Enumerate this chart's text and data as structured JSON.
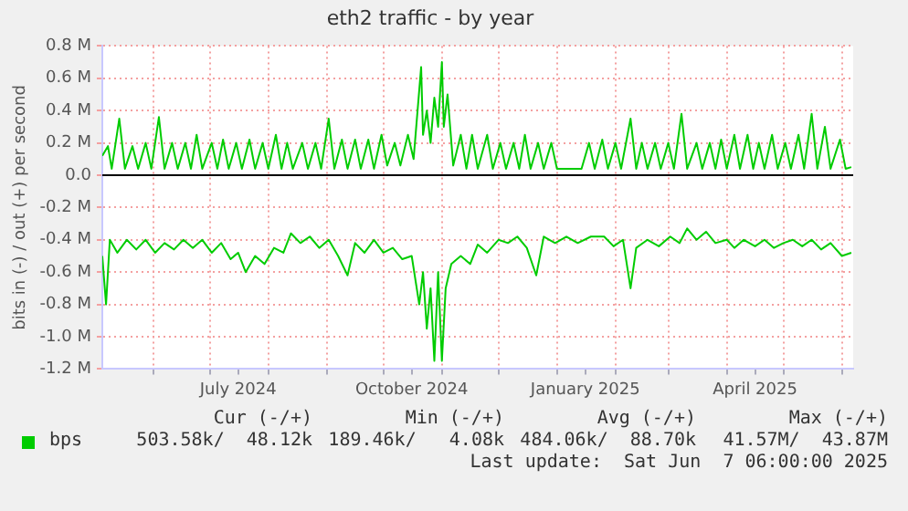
{
  "chart_data": {
    "type": "line",
    "title": "eth2 traffic - by year",
    "ylabel": "bits in (-) / out (+) per second",
    "xlim": [
      "2024-05-05",
      "2025-06-07"
    ],
    "xticks": [
      {
        "value": "2024-06-01",
        "label": null
      },
      {
        "value": "2024-07-01",
        "label": null
      },
      {
        "value": "2024-07-16",
        "label": "July 2024"
      },
      {
        "value": "2024-08-01",
        "label": null
      },
      {
        "value": "2024-09-01",
        "label": null
      },
      {
        "value": "2024-10-01",
        "label": null
      },
      {
        "value": "2024-10-16",
        "label": "October 2024"
      },
      {
        "value": "2024-11-01",
        "label": null
      },
      {
        "value": "2024-12-01",
        "label": null
      },
      {
        "value": "2025-01-01",
        "label": null
      },
      {
        "value": "2025-01-16",
        "label": "January 2025"
      },
      {
        "value": "2025-02-01",
        "label": null
      },
      {
        "value": "2025-03-01",
        "label": null
      },
      {
        "value": "2025-04-01",
        "label": null
      },
      {
        "value": "2025-04-16",
        "label": "April 2025"
      },
      {
        "value": "2025-05-01",
        "label": null
      },
      {
        "value": "2025-06-01",
        "label": null
      }
    ],
    "ylim": [
      -1200000,
      800000
    ],
    "yticks": [
      {
        "value": -1200000,
        "label": "-1.2 M"
      },
      {
        "value": -1000000,
        "label": "-1.0 M"
      },
      {
        "value": -800000,
        "label": "-0.8 M"
      },
      {
        "value": -600000,
        "label": "-0.6 M"
      },
      {
        "value": -400000,
        "label": "-0.4 M"
      },
      {
        "value": -200000,
        "label": "-0.2 M"
      },
      {
        "value": 0,
        "label": "0.0"
      },
      {
        "value": 200000,
        "label": "0.2 M"
      },
      {
        "value": 400000,
        "label": "0.4 M"
      },
      {
        "value": 600000,
        "label": "0.6 M"
      },
      {
        "value": 800000,
        "label": "0.8 M"
      }
    ],
    "grid": true,
    "legend": "bottom",
    "marker": "none",
    "line_style": "solid",
    "ref_lines": [
      {
        "axis": "y",
        "value": 0,
        "color": "#000000"
      }
    ],
    "series": [
      {
        "name": "bps",
        "color": "#00cc00",
        "x": [
          "2024-05-05",
          "2024-05-08",
          "2024-05-10",
          "2024-05-14",
          "2024-05-17",
          "2024-05-21",
          "2024-05-24",
          "2024-05-28",
          "2024-05-31",
          "2024-06-04",
          "2024-06-07",
          "2024-06-11",
          "2024-06-14",
          "2024-06-18",
          "2024-06-21",
          "2024-06-24",
          "2024-06-27",
          "2024-07-02",
          "2024-07-05",
          "2024-07-08",
          "2024-07-11",
          "2024-07-15",
          "2024-07-18",
          "2024-07-22",
          "2024-07-25",
          "2024-07-29",
          "2024-08-01",
          "2024-08-05",
          "2024-08-08",
          "2024-08-11",
          "2024-08-14",
          "2024-08-19",
          "2024-08-22",
          "2024-08-26",
          "2024-08-29",
          "2024-09-02",
          "2024-09-05",
          "2024-09-09",
          "2024-09-12",
          "2024-09-16",
          "2024-09-19",
          "2024-09-23",
          "2024-09-26",
          "2024-09-30",
          "2024-10-03",
          "2024-10-07",
          "2024-10-10",
          "2024-10-14",
          "2024-10-17",
          "2024-10-21",
          "2024-10-22",
          "2024-10-24",
          "2024-10-26",
          "2024-10-28",
          "2024-10-30",
          "2024-11-01",
          "2024-11-02",
          "2024-11-04",
          "2024-11-07",
          "2024-11-11",
          "2024-11-14",
          "2024-11-17",
          "2024-11-20",
          "2024-11-25",
          "2024-11-28",
          "2024-12-02",
          "2024-12-05",
          "2024-12-09",
          "2024-12-12",
          "2024-12-15",
          "2024-12-18",
          "2024-12-22",
          "2024-12-25",
          "2024-12-29",
          "2025-01-01",
          "2025-01-14",
          "2025-01-18",
          "2025-01-21",
          "2025-01-25",
          "2025-01-28",
          "2025-02-01",
          "2025-02-04",
          "2025-02-09",
          "2025-02-12",
          "2025-02-15",
          "2025-02-18",
          "2025-02-22",
          "2025-02-25",
          "2025-03-01",
          "2025-03-04",
          "2025-03-08",
          "2025-03-11",
          "2025-03-16",
          "2025-03-19",
          "2025-03-23",
          "2025-03-26",
          "2025-03-29",
          "2025-04-01",
          "2025-04-05",
          "2025-04-08",
          "2025-04-12",
          "2025-04-15",
          "2025-04-18",
          "2025-04-21",
          "2025-04-25",
          "2025-04-28",
          "2025-05-02",
          "2025-05-05",
          "2025-05-09",
          "2025-05-12",
          "2025-05-16",
          "2025-05-19",
          "2025-05-23",
          "2025-05-26",
          "2025-05-31",
          "2025-06-03",
          "2025-06-06"
        ],
        "values": [
          120000,
          180000,
          40000,
          350000,
          40000,
          180000,
          40000,
          200000,
          40000,
          360000,
          40000,
          200000,
          40000,
          200000,
          40000,
          250000,
          40000,
          200000,
          40000,
          220000,
          40000,
          200000,
          40000,
          220000,
          40000,
          200000,
          40000,
          250000,
          40000,
          200000,
          40000,
          200000,
          40000,
          200000,
          40000,
          350000,
          40000,
          220000,
          40000,
          220000,
          40000,
          220000,
          40000,
          250000,
          60000,
          200000,
          60000,
          250000,
          100000,
          670000,
          250000,
          400000,
          200000,
          480000,
          300000,
          700000,
          300000,
          500000,
          60000,
          250000,
          40000,
          250000,
          40000,
          250000,
          40000,
          200000,
          40000,
          200000,
          40000,
          250000,
          40000,
          200000,
          40000,
          200000,
          40000,
          40000,
          200000,
          40000,
          220000,
          40000,
          200000,
          40000,
          350000,
          40000,
          200000,
          40000,
          200000,
          40000,
          200000,
          40000,
          380000,
          40000,
          200000,
          40000,
          200000,
          40000,
          220000,
          40000,
          250000,
          40000,
          250000,
          40000,
          200000,
          40000,
          250000,
          40000,
          200000,
          40000,
          250000,
          40000,
          380000,
          40000,
          300000,
          40000,
          220000,
          40000,
          50000
        ]
      },
      {
        "color": "#00cc00",
        "x": [
          "2024-05-05",
          "2024-05-07",
          "2024-05-09",
          "2024-05-13",
          "2024-05-18",
          "2024-05-23",
          "2024-05-28",
          "2024-06-02",
          "2024-06-07",
          "2024-06-12",
          "2024-06-17",
          "2024-06-22",
          "2024-06-27",
          "2024-07-02",
          "2024-07-07",
          "2024-07-12",
          "2024-07-16",
          "2024-07-20",
          "2024-07-25",
          "2024-07-30",
          "2024-08-04",
          "2024-08-09",
          "2024-08-13",
          "2024-08-18",
          "2024-08-23",
          "2024-08-28",
          "2024-09-02",
          "2024-09-07",
          "2024-09-12",
          "2024-09-16",
          "2024-09-21",
          "2024-09-26",
          "2024-10-01",
          "2024-10-06",
          "2024-10-11",
          "2024-10-16",
          "2024-10-20",
          "2024-10-22",
          "2024-10-24",
          "2024-10-26",
          "2024-10-28",
          "2024-10-30",
          "2024-11-01",
          "2024-11-03",
          "2024-11-06",
          "2024-11-11",
          "2024-11-16",
          "2024-11-20",
          "2024-11-25",
          "2024-12-01",
          "2024-12-06",
          "2024-12-11",
          "2024-12-16",
          "2024-12-21",
          "2024-12-25",
          "2024-12-31",
          "2025-01-06",
          "2025-01-12",
          "2025-01-19",
          "2025-01-26",
          "2025-01-31",
          "2025-02-05",
          "2025-02-09",
          "2025-02-12",
          "2025-02-18",
          "2025-02-24",
          "2025-03-02",
          "2025-03-07",
          "2025-03-11",
          "2025-03-16",
          "2025-03-21",
          "2025-03-26",
          "2025-04-01",
          "2025-04-05",
          "2025-04-10",
          "2025-04-16",
          "2025-04-21",
          "2025-04-26",
          "2025-05-01",
          "2025-05-06",
          "2025-05-11",
          "2025-05-16",
          "2025-05-21",
          "2025-05-26",
          "2025-06-01",
          "2025-06-06"
        ],
        "values": [
          -500000,
          -800000,
          -400000,
          -480000,
          -400000,
          -460000,
          -400000,
          -480000,
          -420000,
          -460000,
          -400000,
          -450000,
          -400000,
          -480000,
          -420000,
          -520000,
          -480000,
          -600000,
          -500000,
          -550000,
          -450000,
          -480000,
          -360000,
          -420000,
          -380000,
          -450000,
          -400000,
          -500000,
          -620000,
          -420000,
          -480000,
          -400000,
          -480000,
          -450000,
          -520000,
          -500000,
          -800000,
          -600000,
          -950000,
          -700000,
          -1150000,
          -600000,
          -1150000,
          -700000,
          -550000,
          -500000,
          -550000,
          -430000,
          -480000,
          -400000,
          -420000,
          -380000,
          -450000,
          -620000,
          -380000,
          -420000,
          -380000,
          -420000,
          -380000,
          -380000,
          -440000,
          -400000,
          -700000,
          -450000,
          -400000,
          -440000,
          -380000,
          -420000,
          -330000,
          -400000,
          -350000,
          -420000,
          -400000,
          -450000,
          -400000,
          -440000,
          -400000,
          -450000,
          -420000,
          -400000,
          -440000,
          -400000,
          -460000,
          -420000,
          -500000,
          -480000
        ]
      }
    ],
    "annotations": [
      "Cur (-/+)",
      "Min (-/+)",
      "Avg (-/+)",
      "Max (-/+)",
      "503.58k/  48.12k",
      "189.46k/   4.08k",
      "484.06k/  88.70k",
      "41.57M/  43.87M",
      "Last update:  Sat Jun  7 06:00:00 2025"
    ]
  }
}
